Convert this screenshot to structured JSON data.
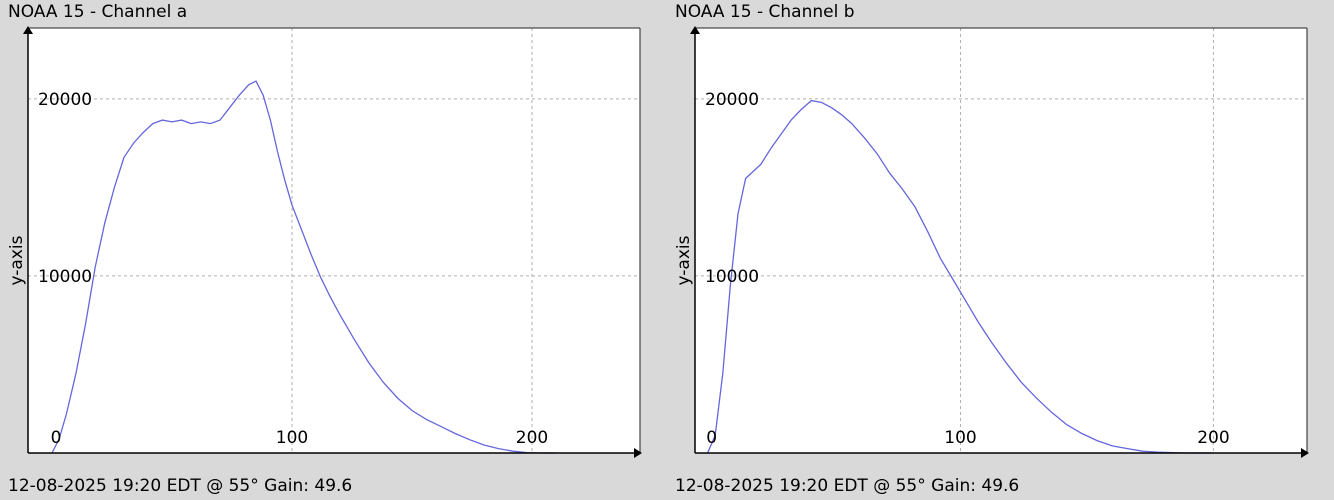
{
  "chart_data": [
    {
      "type": "line",
      "title": "NOAA 15 - Channel a",
      "footer": "12-08-2025 19:20 EDT @ 55° Gain: 49.6",
      "xlabel": "",
      "ylabel": "y-axis",
      "xlim": [
        -10,
        245
      ],
      "ylim": [
        0,
        24000
      ],
      "x_ticks": [
        0,
        100,
        200
      ],
      "y_ticks": [
        10000,
        20000
      ],
      "grid": true,
      "line_color": "#6666dd",
      "series": [
        {
          "x": [
            0,
            3,
            6,
            10,
            14,
            18,
            22,
            26,
            30,
            34,
            38,
            42,
            46,
            50,
            54,
            58,
            62,
            66,
            70,
            74,
            78,
            82,
            85,
            88,
            91,
            94,
            97,
            100,
            104,
            108,
            112,
            116,
            120,
            126,
            132,
            138,
            144,
            150,
            156,
            162,
            168,
            174,
            180,
            186,
            192,
            198,
            204,
            210
          ],
          "values": [
            0,
            800,
            2200,
            4500,
            7300,
            10500,
            13000,
            15000,
            16700,
            17500,
            18100,
            18600,
            18800,
            18700,
            18800,
            18600,
            18700,
            18600,
            18800,
            19500,
            20200,
            20800,
            21000,
            20200,
            18800,
            17000,
            15400,
            14000,
            12600,
            11200,
            9900,
            8800,
            7800,
            6400,
            5100,
            4000,
            3100,
            2400,
            1900,
            1500,
            1100,
            750,
            450,
            250,
            100,
            20,
            0,
            0
          ]
        }
      ]
    },
    {
      "type": "line",
      "title": "NOAA 15 - Channel b",
      "footer": "12-08-2025 19:20 EDT @ 55° Gain: 49.6",
      "xlabel": "",
      "ylabel": "y-axis",
      "xlim": [
        -5,
        237
      ],
      "ylim": [
        0,
        24000
      ],
      "x_ticks": [
        0,
        100,
        200
      ],
      "y_ticks": [
        10000,
        20000
      ],
      "grid": true,
      "line_color": "#6666dd",
      "series": [
        {
          "x": [
            0,
            3,
            6,
            9,
            12,
            15,
            18,
            21,
            25,
            29,
            33,
            37,
            41,
            45,
            49,
            53,
            57,
            62,
            67,
            72,
            77,
            82,
            87,
            92,
            97,
            102,
            107,
            112,
            118,
            124,
            130,
            136,
            142,
            148,
            154,
            160,
            166,
            172,
            178,
            184,
            190,
            196,
            200
          ],
          "values": [
            0,
            1000,
            4500,
            9500,
            13500,
            15500,
            15900,
            16300,
            17200,
            18000,
            18800,
            19400,
            19900,
            19800,
            19500,
            19100,
            18600,
            17800,
            16900,
            15800,
            14900,
            13900,
            12500,
            11000,
            9800,
            8600,
            7400,
            6300,
            5100,
            4000,
            3100,
            2300,
            1600,
            1100,
            700,
            400,
            250,
            100,
            50,
            20,
            0,
            0,
            0
          ]
        }
      ]
    }
  ]
}
